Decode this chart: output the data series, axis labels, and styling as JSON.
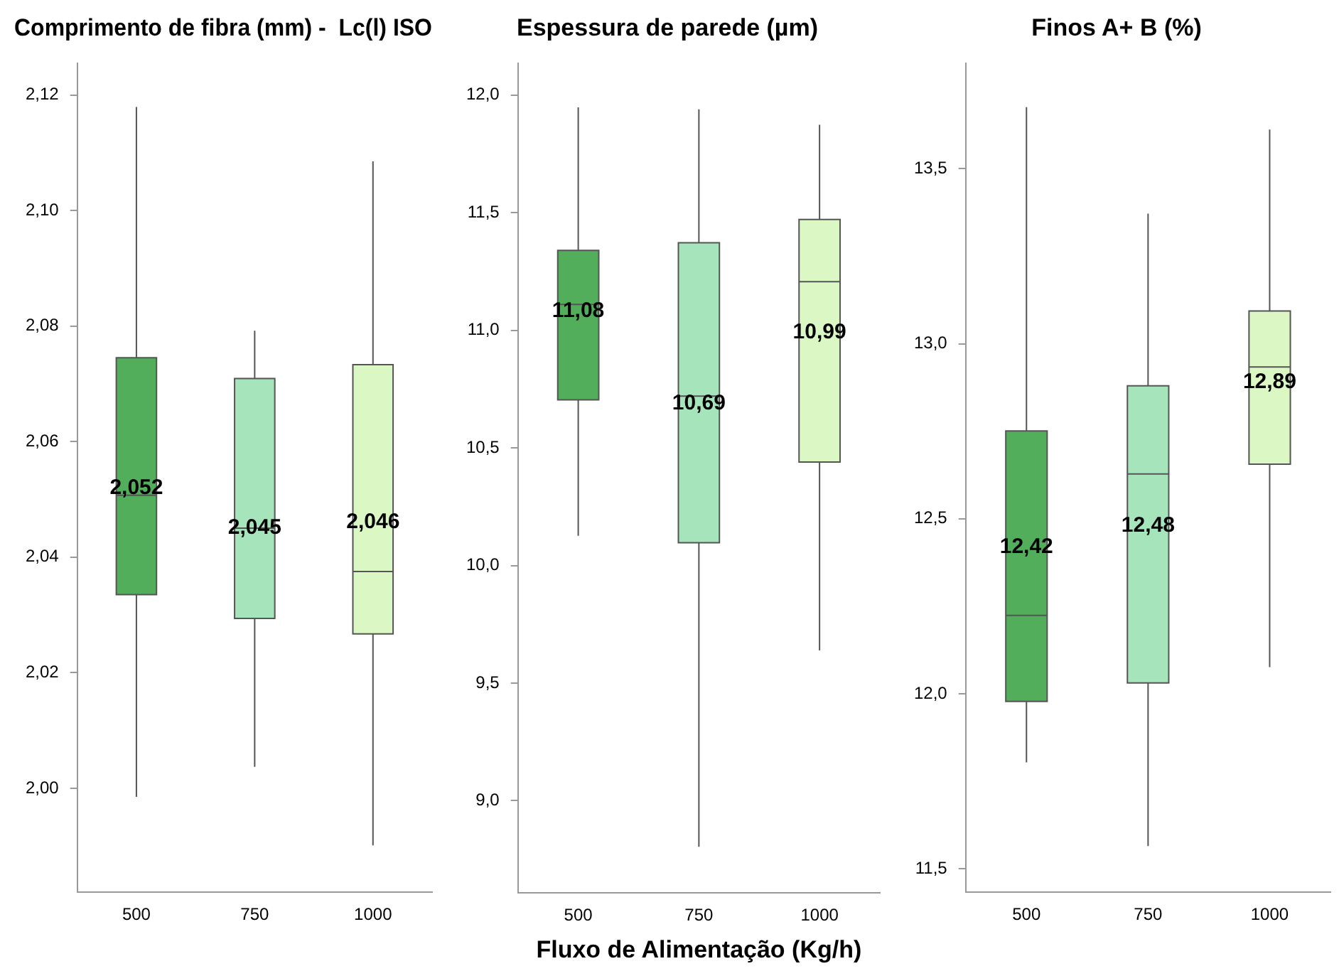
{
  "chart_data": [
    {
      "type": "box",
      "title": "Comprimento de fibra (mm) -  Lc(l) ISO",
      "categories": [
        "500",
        "750",
        "1000"
      ],
      "colors": [
        "#52ae5a",
        "#a6e4bc",
        "#daf7c4"
      ],
      "boxes": [
        {
          "low": 1.9985,
          "q1": 2.0335,
          "median": 2.0507,
          "q3": 2.0745,
          "high": 2.1179,
          "mean": 2.052
        },
        {
          "low": 2.0037,
          "q1": 2.0294,
          "median": 2.045,
          "q3": 2.0709,
          "high": 2.0792,
          "mean": 2.045
        },
        {
          "low": 1.9901,
          "q1": 2.0267,
          "median": 2.0375,
          "q3": 2.0733,
          "high": 2.1085,
          "mean": 2.046
        }
      ],
      "value_labels": [
        "2,052",
        "2,045",
        "2,046"
      ],
      "ylim": [
        1.982,
        2.1255
      ],
      "yticks": [
        {
          "value": 2.0,
          "label": "2,00"
        },
        {
          "value": 2.02,
          "label": "2,02"
        },
        {
          "value": 2.04,
          "label": "2,04"
        },
        {
          "value": 2.06,
          "label": "2,06"
        },
        {
          "value": 2.08,
          "label": "2,08"
        },
        {
          "value": 2.1,
          "label": "2,10"
        },
        {
          "value": 2.12,
          "label": "2,12"
        }
      ],
      "grid": false,
      "legend": false
    },
    {
      "type": "box",
      "title": "Espessura de parede (µm)",
      "xlabel": "Fluxo de Alimentação (Kg/h)",
      "categories": [
        "500",
        "750",
        "1000"
      ],
      "colors": [
        "#52ae5a",
        "#a6e4bc",
        "#daf7c4"
      ],
      "boxes": [
        {
          "low": 10.126,
          "q1": 10.704,
          "median": 11.11,
          "q3": 11.34,
          "high": 11.948,
          "mean": 11.08
        },
        {
          "low": 8.804,
          "q1": 10.097,
          "median": 10.72,
          "q3": 11.372,
          "high": 11.94,
          "mean": 10.69
        },
        {
          "low": 9.639,
          "q1": 10.44,
          "median": 11.207,
          "q3": 11.471,
          "high": 11.874,
          "mean": 10.99
        }
      ],
      "value_labels": [
        "11,08",
        "10,69",
        "10,99"
      ],
      "ylim": [
        8.607,
        12.136
      ],
      "yticks": [
        {
          "value": 9.0,
          "label": "9,0"
        },
        {
          "value": 9.5,
          "label": "9,5"
        },
        {
          "value": 10.0,
          "label": "10,0"
        },
        {
          "value": 10.5,
          "label": "10,5"
        },
        {
          "value": 11.0,
          "label": "11,0"
        },
        {
          "value": 11.5,
          "label": "11,5"
        },
        {
          "value": 12.0,
          "label": "12,0"
        }
      ],
      "grid": false,
      "legend": false
    },
    {
      "type": "box",
      "title": "Finos A+ B (%)",
      "categories": [
        "500",
        "750",
        "1000"
      ],
      "colors": [
        "#52ae5a",
        "#a6e4bc",
        "#daf7c4"
      ],
      "boxes": [
        {
          "low": 11.804,
          "q1": 11.978,
          "median": 12.224,
          "q3": 12.751,
          "high": 13.676,
          "mean": 12.42
        },
        {
          "low": 11.565,
          "q1": 12.031,
          "median": 12.628,
          "q3": 12.88,
          "high": 13.372,
          "mean": 12.48
        },
        {
          "low": 12.076,
          "q1": 12.656,
          "median": 12.934,
          "q3": 13.094,
          "high": 13.612,
          "mean": 12.89
        }
      ],
      "value_labels": [
        "12,42",
        "12,48",
        "12,89"
      ],
      "ylim": [
        11.433,
        13.802
      ],
      "yticks": [
        {
          "value": 11.5,
          "label": "11,5"
        },
        {
          "value": 12.0,
          "label": "12,0"
        },
        {
          "value": 12.5,
          "label": "12,5"
        },
        {
          "value": 13.0,
          "label": "13,0"
        },
        {
          "value": 13.5,
          "label": "13,5"
        }
      ],
      "grid": false,
      "legend": false
    }
  ]
}
